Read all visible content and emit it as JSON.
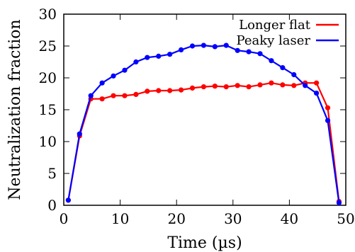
{
  "chart_data": {
    "type": "line",
    "xlabel": "Time (µs)",
    "ylabel": "Neutralization fraction",
    "xlim": [
      0,
      50
    ],
    "ylim": [
      0,
      30
    ],
    "xticks": [
      0,
      10,
      20,
      30,
      40,
      50
    ],
    "yticks": [
      0,
      5,
      10,
      15,
      20,
      25,
      30
    ],
    "grid": false,
    "legend_position": "top-right",
    "x": [
      0.8,
      2.8,
      4.8,
      6.8,
      8.8,
      10.8,
      12.8,
      14.8,
      16.8,
      18.8,
      20.8,
      22.8,
      24.8,
      26.8,
      28.8,
      30.8,
      32.8,
      34.8,
      36.8,
      38.8,
      40.8,
      42.8,
      44.8,
      46.8,
      48.8
    ],
    "series": [
      {
        "name": "Longer flat",
        "color": "#ff0000",
        "values": [
          0.8,
          10.9,
          16.7,
          16.7,
          17.2,
          17.2,
          17.4,
          17.9,
          18.0,
          18.0,
          18.1,
          18.4,
          18.6,
          18.7,
          18.6,
          18.8,
          18.6,
          18.9,
          19.2,
          18.9,
          18.8,
          19.2,
          19.2,
          15.3,
          0.6
        ]
      },
      {
        "name": "Peaky laser",
        "color": "#0000ff",
        "values": [
          0.8,
          11.2,
          17.2,
          19.2,
          20.3,
          21.2,
          22.5,
          23.2,
          23.4,
          23.7,
          24.4,
          25.0,
          25.1,
          24.9,
          25.1,
          24.3,
          24.1,
          23.8,
          22.7,
          21.6,
          20.5,
          18.8,
          17.6,
          13.3,
          0.4
        ]
      }
    ]
  }
}
